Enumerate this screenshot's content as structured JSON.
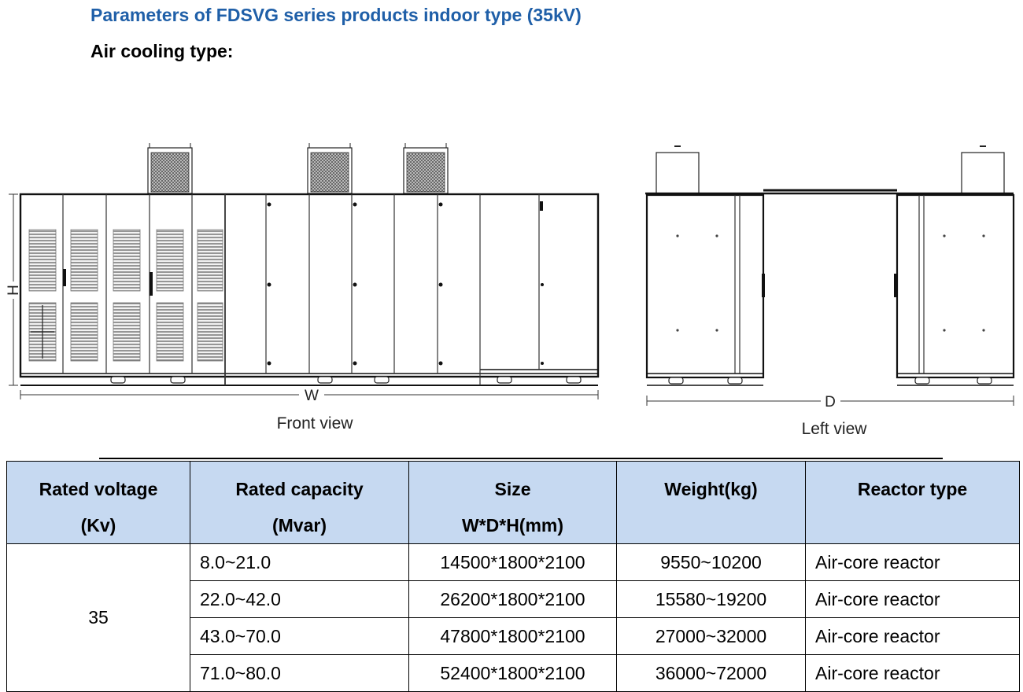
{
  "header": {
    "title": "Parameters of FDSVG series products indoor type (35kV)",
    "subtitle": "Air cooling type:"
  },
  "drawing": {
    "front_label": "Front view",
    "left_label": "Left view",
    "dim_w": "W",
    "dim_h": "H",
    "dim_d": "D"
  },
  "table": {
    "headers": [
      {
        "line1": "Rated voltage",
        "line2": "(Kv)"
      },
      {
        "line1": "Rated capacity",
        "line2": "(Mvar)"
      },
      {
        "line1": "Size",
        "line2": "W*D*H(mm)"
      },
      {
        "line1": "Weight(kg)",
        "line2": ""
      },
      {
        "line1": "Reactor type",
        "line2": ""
      }
    ],
    "voltage": "35",
    "rows": [
      {
        "capacity": "8.0~21.0",
        "size": "14500*1800*2100",
        "weight": "9550~10200",
        "reactor": "Air-core reactor"
      },
      {
        "capacity": "22.0~42.0",
        "size": "26200*1800*2100",
        "weight": "15580~19200",
        "reactor": "Air-core reactor"
      },
      {
        "capacity": "43.0~70.0",
        "size": "47800*1800*2100",
        "weight": "27000~32000",
        "reactor": "Air-core reactor"
      },
      {
        "capacity": "71.0~80.0",
        "size": "52400*1800*2100",
        "weight": "36000~72000",
        "reactor": "Air-core reactor"
      }
    ]
  }
}
